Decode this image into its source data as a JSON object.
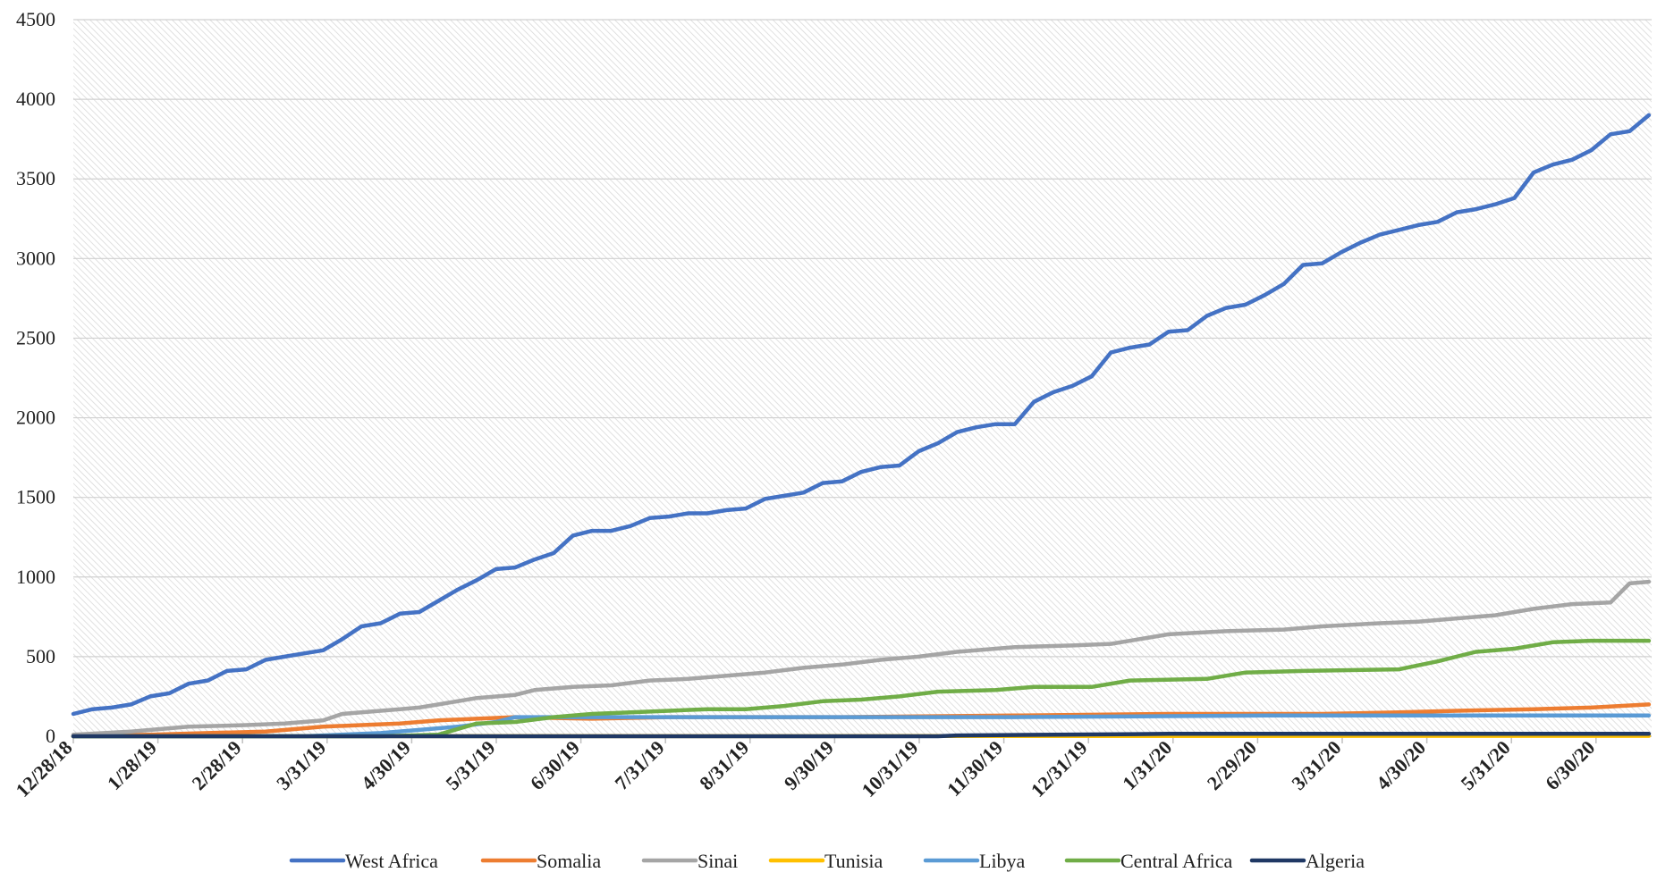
{
  "chart_data": {
    "type": "line",
    "title": "",
    "xlabel": "",
    "ylabel": "",
    "ylim": [
      0,
      4500
    ],
    "y_ticks": [
      0,
      500,
      1000,
      1500,
      2000,
      2500,
      3000,
      3500,
      4000,
      4500
    ],
    "x_tick_labels": [
      "12/28/18",
      "1/28/19",
      "2/28/19",
      "3/31/19",
      "4/30/19",
      "5/31/19",
      "6/30/19",
      "7/31/19",
      "8/31/19",
      "9/30/19",
      "10/31/19",
      "11/30/19",
      "12/31/19",
      "1/31/20",
      "2/29/20",
      "3/31/20",
      "4/30/20",
      "5/31/20",
      "6/30/20"
    ],
    "x_range": [
      "2018-12-28",
      "2020-07-25"
    ],
    "legend_position": "bottom",
    "grid": true,
    "series": [
      {
        "name": "West Africa",
        "color": "#4472C4",
        "points": [
          [
            "2018-12-28",
            140
          ],
          [
            "2019-01-04",
            170
          ],
          [
            "2019-01-11",
            180
          ],
          [
            "2019-01-18",
            200
          ],
          [
            "2019-01-25",
            250
          ],
          [
            "2019-02-01",
            270
          ],
          [
            "2019-02-08",
            330
          ],
          [
            "2019-02-15",
            350
          ],
          [
            "2019-02-22",
            410
          ],
          [
            "2019-03-01",
            420
          ],
          [
            "2019-03-08",
            480
          ],
          [
            "2019-03-15",
            500
          ],
          [
            "2019-03-22",
            520
          ],
          [
            "2019-03-29",
            540
          ],
          [
            "2019-04-05",
            610
          ],
          [
            "2019-04-12",
            690
          ],
          [
            "2019-04-19",
            710
          ],
          [
            "2019-04-26",
            770
          ],
          [
            "2019-05-03",
            780
          ],
          [
            "2019-05-10",
            850
          ],
          [
            "2019-05-17",
            920
          ],
          [
            "2019-05-24",
            980
          ],
          [
            "2019-05-31",
            1050
          ],
          [
            "2019-06-07",
            1060
          ],
          [
            "2019-06-14",
            1110
          ],
          [
            "2019-06-21",
            1150
          ],
          [
            "2019-06-28",
            1260
          ],
          [
            "2019-07-05",
            1290
          ],
          [
            "2019-07-12",
            1290
          ],
          [
            "2019-07-19",
            1320
          ],
          [
            "2019-07-26",
            1370
          ],
          [
            "2019-08-02",
            1380
          ],
          [
            "2019-08-09",
            1400
          ],
          [
            "2019-08-16",
            1400
          ],
          [
            "2019-08-23",
            1420
          ],
          [
            "2019-08-30",
            1430
          ],
          [
            "2019-09-06",
            1490
          ],
          [
            "2019-09-13",
            1510
          ],
          [
            "2019-09-20",
            1530
          ],
          [
            "2019-09-27",
            1590
          ],
          [
            "2019-10-04",
            1600
          ],
          [
            "2019-10-11",
            1660
          ],
          [
            "2019-10-18",
            1690
          ],
          [
            "2019-10-25",
            1700
          ],
          [
            "2019-11-01",
            1790
          ],
          [
            "2019-11-08",
            1840
          ],
          [
            "2019-11-15",
            1910
          ],
          [
            "2019-11-22",
            1940
          ],
          [
            "2019-11-29",
            1960
          ],
          [
            "2019-12-06",
            1960
          ],
          [
            "2019-12-13",
            2100
          ],
          [
            "2019-12-20",
            2160
          ],
          [
            "2019-12-27",
            2200
          ],
          [
            "2020-01-03",
            2260
          ],
          [
            "2020-01-10",
            2410
          ],
          [
            "2020-01-17",
            2440
          ],
          [
            "2020-01-24",
            2460
          ],
          [
            "2020-01-31",
            2540
          ],
          [
            "2020-02-07",
            2550
          ],
          [
            "2020-02-14",
            2640
          ],
          [
            "2020-02-21",
            2690
          ],
          [
            "2020-02-28",
            2710
          ],
          [
            "2020-03-06",
            2770
          ],
          [
            "2020-03-13",
            2840
          ],
          [
            "2020-03-20",
            2960
          ],
          [
            "2020-03-27",
            2970
          ],
          [
            "2020-04-03",
            3040
          ],
          [
            "2020-04-10",
            3100
          ],
          [
            "2020-04-17",
            3150
          ],
          [
            "2020-04-24",
            3180
          ],
          [
            "2020-05-01",
            3210
          ],
          [
            "2020-05-08",
            3230
          ],
          [
            "2020-05-15",
            3290
          ],
          [
            "2020-05-22",
            3310
          ],
          [
            "2020-05-29",
            3340
          ],
          [
            "2020-06-05",
            3380
          ],
          [
            "2020-06-12",
            3540
          ],
          [
            "2020-06-19",
            3590
          ],
          [
            "2020-06-26",
            3620
          ],
          [
            "2020-07-03",
            3680
          ],
          [
            "2020-07-10",
            3780
          ],
          [
            "2020-07-17",
            3800
          ],
          [
            "2020-07-24",
            3900
          ]
        ]
      },
      {
        "name": "Somalia",
        "color": "#ED7D31",
        "points": [
          [
            "2018-12-28",
            0
          ],
          [
            "2019-01-25",
            10
          ],
          [
            "2019-02-15",
            20
          ],
          [
            "2019-03-08",
            30
          ],
          [
            "2019-03-22",
            50
          ],
          [
            "2019-03-29",
            60
          ],
          [
            "2019-04-12",
            70
          ],
          [
            "2019-04-26",
            80
          ],
          [
            "2019-05-10",
            100
          ],
          [
            "2019-05-24",
            110
          ],
          [
            "2019-06-07",
            120
          ],
          [
            "2019-07-05",
            110
          ],
          [
            "2019-08-02",
            120
          ],
          [
            "2019-10-04",
            120
          ],
          [
            "2019-12-06",
            130
          ],
          [
            "2020-01-31",
            140
          ],
          [
            "2020-03-27",
            140
          ],
          [
            "2020-04-24",
            150
          ],
          [
            "2020-05-15",
            160
          ],
          [
            "2020-06-12",
            170
          ],
          [
            "2020-07-03",
            180
          ],
          [
            "2020-07-24",
            200
          ]
        ]
      },
      {
        "name": "Sinai",
        "color": "#A5A5A5",
        "points": [
          [
            "2018-12-28",
            10
          ],
          [
            "2019-01-18",
            30
          ],
          [
            "2019-02-08",
            60
          ],
          [
            "2019-03-01",
            70
          ],
          [
            "2019-03-15",
            80
          ],
          [
            "2019-03-29",
            100
          ],
          [
            "2019-04-05",
            140
          ],
          [
            "2019-04-12",
            150
          ],
          [
            "2019-04-26",
            170
          ],
          [
            "2019-05-03",
            180
          ],
          [
            "2019-05-10",
            200
          ],
          [
            "2019-05-24",
            240
          ],
          [
            "2019-06-07",
            260
          ],
          [
            "2019-06-14",
            290
          ],
          [
            "2019-06-28",
            310
          ],
          [
            "2019-07-12",
            320
          ],
          [
            "2019-07-26",
            350
          ],
          [
            "2019-08-09",
            360
          ],
          [
            "2019-08-23",
            380
          ],
          [
            "2019-09-06",
            400
          ],
          [
            "2019-09-20",
            430
          ],
          [
            "2019-10-04",
            450
          ],
          [
            "2019-10-18",
            480
          ],
          [
            "2019-11-01",
            500
          ],
          [
            "2019-11-15",
            530
          ],
          [
            "2019-11-29",
            550
          ],
          [
            "2019-12-06",
            560
          ],
          [
            "2019-12-27",
            570
          ],
          [
            "2020-01-10",
            580
          ],
          [
            "2020-01-24",
            620
          ],
          [
            "2020-01-31",
            640
          ],
          [
            "2020-02-21",
            660
          ],
          [
            "2020-03-13",
            670
          ],
          [
            "2020-03-27",
            690
          ],
          [
            "2020-04-17",
            710
          ],
          [
            "2020-05-01",
            720
          ],
          [
            "2020-05-15",
            740
          ],
          [
            "2020-05-29",
            760
          ],
          [
            "2020-06-12",
            800
          ],
          [
            "2020-06-26",
            830
          ],
          [
            "2020-07-10",
            840
          ],
          [
            "2020-07-17",
            960
          ],
          [
            "2020-07-24",
            970
          ]
        ]
      },
      {
        "name": "Tunisia",
        "color": "#FFC000",
        "points": [
          [
            "2018-12-28",
            0
          ],
          [
            "2020-07-24",
            2
          ]
        ]
      },
      {
        "name": "Libya",
        "color": "#5B9BD5",
        "points": [
          [
            "2018-12-28",
            0
          ],
          [
            "2019-03-22",
            0
          ],
          [
            "2019-04-19",
            20
          ],
          [
            "2019-05-03",
            40
          ],
          [
            "2019-05-17",
            60
          ],
          [
            "2019-05-31",
            90
          ],
          [
            "2019-06-07",
            120
          ],
          [
            "2019-07-05",
            120
          ],
          [
            "2019-09-06",
            120
          ],
          [
            "2019-12-06",
            120
          ],
          [
            "2020-03-06",
            130
          ],
          [
            "2020-07-24",
            130
          ]
        ]
      },
      {
        "name": "Central Africa",
        "color": "#70AD47",
        "points": [
          [
            "2018-12-28",
            0
          ],
          [
            "2019-04-19",
            0
          ],
          [
            "2019-05-10",
            10
          ],
          [
            "2019-05-24",
            80
          ],
          [
            "2019-06-07",
            90
          ],
          [
            "2019-06-21",
            120
          ],
          [
            "2019-07-05",
            140
          ],
          [
            "2019-07-19",
            150
          ],
          [
            "2019-08-02",
            160
          ],
          [
            "2019-08-16",
            170
          ],
          [
            "2019-08-30",
            170
          ],
          [
            "2019-09-13",
            190
          ],
          [
            "2019-09-27",
            220
          ],
          [
            "2019-10-11",
            230
          ],
          [
            "2019-10-25",
            250
          ],
          [
            "2019-11-08",
            280
          ],
          [
            "2019-11-29",
            290
          ],
          [
            "2019-12-13",
            310
          ],
          [
            "2020-01-03",
            310
          ],
          [
            "2020-01-17",
            350
          ],
          [
            "2020-02-14",
            360
          ],
          [
            "2020-02-28",
            400
          ],
          [
            "2020-03-20",
            410
          ],
          [
            "2020-04-24",
            420
          ],
          [
            "2020-05-08",
            470
          ],
          [
            "2020-05-22",
            530
          ],
          [
            "2020-06-05",
            550
          ],
          [
            "2020-06-19",
            590
          ],
          [
            "2020-07-03",
            600
          ],
          [
            "2020-07-24",
            600
          ]
        ]
      },
      {
        "name": "Algeria",
        "color": "#1F3864",
        "points": [
          [
            "2018-12-28",
            0
          ],
          [
            "2019-11-08",
            0
          ],
          [
            "2019-11-15",
            5
          ],
          [
            "2020-01-31",
            15
          ],
          [
            "2020-07-24",
            15
          ]
        ]
      }
    ]
  }
}
